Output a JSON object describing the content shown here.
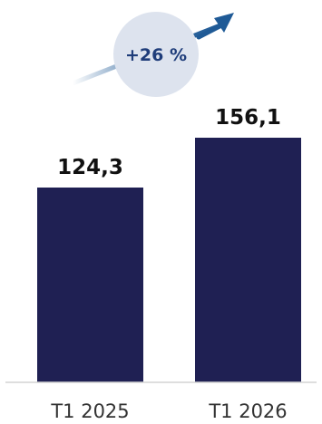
{
  "chart_data": {
    "type": "bar",
    "title": "",
    "xlabel": "",
    "ylabel": "",
    "categories": [
      "T1 2025",
      "T1 2026"
    ],
    "values": [
      124.3,
      156.1
    ],
    "value_labels": [
      "124,3",
      "156,1"
    ],
    "ylim": [
      0,
      160
    ],
    "grid": false,
    "legend": "none",
    "annotations": [
      {
        "text": "+26 %",
        "kind": "growth-badge-with-rising-arrow"
      }
    ]
  },
  "colors": {
    "bar": "#1f2053",
    "value_text": "#111111",
    "tick_text": "#333333",
    "badge_fill": "#dde3ee",
    "badge_text": "#1f3d7a",
    "arrow": "#1f5a96",
    "baseline": "#d4d4d4"
  }
}
